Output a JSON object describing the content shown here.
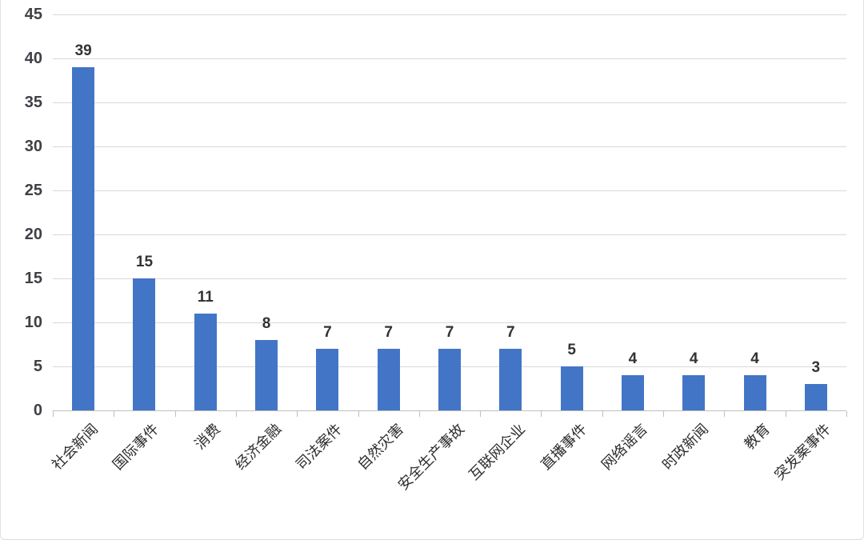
{
  "chart_data": {
    "type": "bar",
    "title": "",
    "xlabel": "",
    "ylabel": "",
    "categories": [
      "社会新闻",
      "国际事件",
      "消费",
      "经济金融",
      "司法案件",
      "自然灾害",
      "安全生产事故",
      "互联网企业",
      "直播事件",
      "网络谣言",
      "时政新闻",
      "教育",
      "突发案事件"
    ],
    "values": [
      39,
      15,
      11,
      8,
      7,
      7,
      7,
      7,
      5,
      4,
      4,
      4,
      3
    ],
    "ylim": [
      0,
      45
    ],
    "yticks": [
      0,
      5,
      10,
      15,
      20,
      25,
      30,
      35,
      40,
      45
    ],
    "grid": true,
    "legend": false,
    "data_labels": true,
    "bar_color": "#4375C7",
    "gridline_color": "#D9D9D9",
    "axis_line_color": "#BFBFBF",
    "ytick_color": "#3E4146",
    "data_label_color": "#333333",
    "category_label_color": "#2D2D2D",
    "background_color": "#FFFFFF"
  }
}
